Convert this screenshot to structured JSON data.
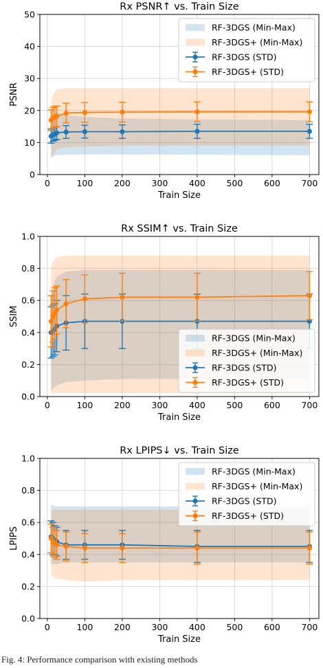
{
  "caption": "Fig. 4:  Performance comparison with existing methods",
  "chart_data": [
    {
      "type": "line",
      "title": "Rx PSNR↑ vs. Train Size",
      "xlabel": "Train Size",
      "ylabel": "PSNR",
      "xlim": [
        -20,
        725
      ],
      "ylim": [
        0,
        50
      ],
      "xticks": [
        0,
        100,
        200,
        300,
        400,
        500,
        600,
        700
      ],
      "yticks": [
        0,
        10,
        20,
        30,
        40,
        50
      ],
      "grid": true,
      "legend_position": "top-right",
      "x": [
        10,
        15,
        20,
        25,
        50,
        100,
        200,
        400,
        700
      ],
      "series": [
        {
          "name": "RF-3DGS (Min-Max)",
          "kind": "band",
          "color": "#1f77b4",
          "lower": [
            5.0,
            5.5,
            6.0,
            6.0,
            6.2,
            6.3,
            6.3,
            6.2,
            6.0
          ],
          "upper": [
            18.5,
            19.0,
            19.2,
            19.5,
            18.5,
            18.0,
            17.5,
            17.2,
            17.0
          ]
        },
        {
          "name": "RF-3DGS+ (Min-Max)",
          "kind": "band",
          "color": "#ff7f0e",
          "lower": [
            5.5,
            6.0,
            7.0,
            8.0,
            8.5,
            8.8,
            9.0,
            9.0,
            9.0
          ],
          "upper": [
            23.0,
            25.0,
            26.0,
            26.5,
            27.0,
            27.0,
            27.0,
            27.0,
            27.0
          ]
        },
        {
          "name": "RF-3DGS (STD)",
          "kind": "errorbar",
          "color": "#1f77b4",
          "y": [
            12.0,
            12.4,
            12.7,
            13.0,
            13.3,
            13.4,
            13.4,
            13.5,
            13.5
          ],
          "err": [
            2.2,
            2.0,
            2.0,
            2.0,
            2.0,
            2.0,
            2.1,
            2.2,
            2.2
          ]
        },
        {
          "name": "RF-3DGS+ (STD)",
          "kind": "errorbar",
          "color": "#ff7f0e",
          "y": [
            17.0,
            17.6,
            18.0,
            18.2,
            19.2,
            19.4,
            19.5,
            19.6,
            19.6
          ],
          "err": [
            3.2,
            3.3,
            3.3,
            3.2,
            3.1,
            3.1,
            3.1,
            3.1,
            3.1
          ]
        }
      ]
    },
    {
      "type": "line",
      "title": "Rx SSIM↑ vs. Train Size",
      "xlabel": "Train Size",
      "ylabel": "SSIM",
      "xlim": [
        -20,
        725
      ],
      "ylim": [
        0.0,
        1.0
      ],
      "xticks": [
        0,
        100,
        200,
        300,
        400,
        500,
        600,
        700
      ],
      "yticks": [
        0.0,
        0.2,
        0.4,
        0.6,
        0.8,
        1.0
      ],
      "grid": true,
      "legend_position": "bottom-right",
      "x": [
        10,
        15,
        20,
        25,
        50,
        100,
        200,
        400,
        700
      ],
      "series": [
        {
          "name": "RF-3DGS (Min-Max)",
          "kind": "band",
          "color": "#1f77b4",
          "lower": [
            0.04,
            0.05,
            0.06,
            0.07,
            0.09,
            0.1,
            0.11,
            0.11,
            0.11
          ],
          "upper": [
            0.66,
            0.68,
            0.72,
            0.75,
            0.78,
            0.79,
            0.79,
            0.79,
            0.79
          ]
        },
        {
          "name": "RF-3DGS+ (Min-Max)",
          "kind": "band",
          "color": "#ff7f0e",
          "lower": [
            0.02,
            0.02,
            0.02,
            0.02,
            0.02,
            0.02,
            0.02,
            0.02,
            0.02
          ],
          "upper": [
            0.8,
            0.84,
            0.86,
            0.87,
            0.88,
            0.88,
            0.88,
            0.88,
            0.88
          ]
        },
        {
          "name": "RF-3DGS (STD)",
          "kind": "errorbar",
          "color": "#1f77b4",
          "y": [
            0.4,
            0.41,
            0.42,
            0.44,
            0.46,
            0.47,
            0.47,
            0.47,
            0.47
          ],
          "err": [
            0.16,
            0.16,
            0.16,
            0.16,
            0.17,
            0.17,
            0.17,
            0.17,
            0.17
          ]
        },
        {
          "name": "RF-3DGS+ (STD)",
          "kind": "errorbar",
          "color": "#ff7f0e",
          "y": [
            0.47,
            0.5,
            0.52,
            0.54,
            0.58,
            0.61,
            0.62,
            0.62,
            0.63
          ],
          "err": [
            0.16,
            0.16,
            0.16,
            0.15,
            0.15,
            0.15,
            0.15,
            0.15,
            0.15
          ]
        }
      ]
    },
    {
      "type": "line",
      "title": "Rx LPIPS↓ vs. Train Size",
      "xlabel": "Train Size",
      "ylabel": "LPIPS",
      "xlim": [
        -20,
        725
      ],
      "ylim": [
        0.0,
        1.0
      ],
      "xticks": [
        0,
        100,
        200,
        300,
        400,
        500,
        600,
        700
      ],
      "yticks": [
        0.0,
        0.2,
        0.4,
        0.6,
        0.8,
        1.0
      ],
      "grid": true,
      "legend_position": "top-right",
      "x": [
        10,
        15,
        20,
        25,
        50,
        100,
        200,
        400,
        700
      ],
      "series": [
        {
          "name": "RF-3DGS (Min-Max)",
          "kind": "band",
          "color": "#1f77b4",
          "lower": [
            0.34,
            0.34,
            0.34,
            0.34,
            0.35,
            0.35,
            0.35,
            0.35,
            0.35
          ],
          "upper": [
            0.71,
            0.71,
            0.7,
            0.7,
            0.7,
            0.7,
            0.7,
            0.7,
            0.7
          ]
        },
        {
          "name": "RF-3DGS+ (Min-Max)",
          "kind": "band",
          "color": "#ff7f0e",
          "lower": [
            0.27,
            0.26,
            0.25,
            0.25,
            0.24,
            0.23,
            0.24,
            0.24,
            0.24
          ],
          "upper": [
            0.68,
            0.68,
            0.68,
            0.68,
            0.68,
            0.68,
            0.68,
            0.68,
            0.68
          ]
        },
        {
          "name": "RF-3DGS (STD)",
          "kind": "errorbar",
          "color": "#1f77b4",
          "y": [
            0.51,
            0.5,
            0.49,
            0.48,
            0.46,
            0.46,
            0.46,
            0.45,
            0.45
          ],
          "err": [
            0.1,
            0.1,
            0.09,
            0.09,
            0.09,
            0.09,
            0.09,
            0.1,
            0.1
          ]
        },
        {
          "name": "RF-3DGS+ (STD)",
          "kind": "errorbar",
          "color": "#ff7f0e",
          "y": [
            0.5,
            0.48,
            0.47,
            0.46,
            0.45,
            0.44,
            0.44,
            0.44,
            0.44
          ],
          "err": [
            0.09,
            0.09,
            0.09,
            0.09,
            0.09,
            0.09,
            0.09,
            0.1,
            0.1
          ]
        }
      ]
    }
  ]
}
